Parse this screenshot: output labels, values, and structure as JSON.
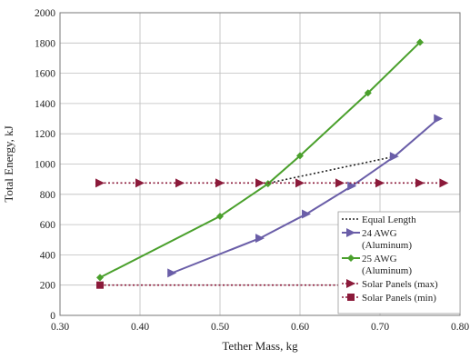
{
  "chart_data": {
    "type": "line",
    "xlabel": "Tether Mass, kg",
    "ylabel": "Total Energy, kJ",
    "xlim": [
      0.3,
      0.8
    ],
    "ylim": [
      0,
      2000
    ],
    "x_ticks": [
      "0.30",
      "0.40",
      "0.50",
      "0.60",
      "0.70",
      "0.80"
    ],
    "y_ticks": [
      "0",
      "200",
      "400",
      "600",
      "800",
      "1000",
      "1200",
      "1400",
      "1600",
      "1800",
      "2000"
    ],
    "x_tick_values": [
      0.3,
      0.4,
      0.5,
      0.6,
      0.7,
      0.8
    ],
    "y_tick_values": [
      0,
      200,
      400,
      600,
      800,
      1000,
      1200,
      1400,
      1600,
      1800,
      2000
    ],
    "grid": true,
    "legend_position": "bottom-right",
    "series": [
      {
        "name": "Equal Length",
        "legend_lines": [
          "Equal Length"
        ],
        "color": "#222222",
        "style": "dotted",
        "marker": "none",
        "x": [
          0.557,
          0.718
        ],
        "y": [
          870,
          1050
        ]
      },
      {
        "name": "24 AWG (Aluminum)",
        "legend_lines": [
          "24 AWG",
          "(Aluminum)"
        ],
        "color": "#6a5ea8",
        "style": "solid",
        "marker": "triangle-right",
        "x": [
          0.44,
          0.55,
          0.608,
          0.665,
          0.718,
          0.773
        ],
        "y": [
          280,
          510,
          670,
          855,
          1050,
          1300
        ]
      },
      {
        "name": "25 AWG (Aluminum)",
        "legend_lines": [
          "25 AWG",
          "(Aluminum)"
        ],
        "color": "#4aa02c",
        "style": "solid",
        "marker": "diamond",
        "x": [
          0.35,
          0.5,
          0.56,
          0.6,
          0.685,
          0.75
        ],
        "y": [
          250,
          655,
          870,
          1055,
          1470,
          1805
        ]
      },
      {
        "name": "Solar Panels (max)",
        "legend_lines": [
          "Solar Panels (max)"
        ],
        "color": "#8b1a3a",
        "style": "dotted",
        "marker": "triangle-right",
        "x": [
          0.35,
          0.4,
          0.45,
          0.5,
          0.55,
          0.6,
          0.65,
          0.7,
          0.75,
          0.78
        ],
        "y": [
          875,
          875,
          875,
          875,
          875,
          875,
          875,
          875,
          875,
          875
        ]
      },
      {
        "name": "Solar Panels (min)",
        "legend_lines": [
          "Solar Panels (min)"
        ],
        "color": "#8b1a3a",
        "style": "dotted",
        "marker": "square",
        "x": [
          0.35,
          0.78
        ],
        "y": [
          200,
          200
        ]
      }
    ]
  }
}
